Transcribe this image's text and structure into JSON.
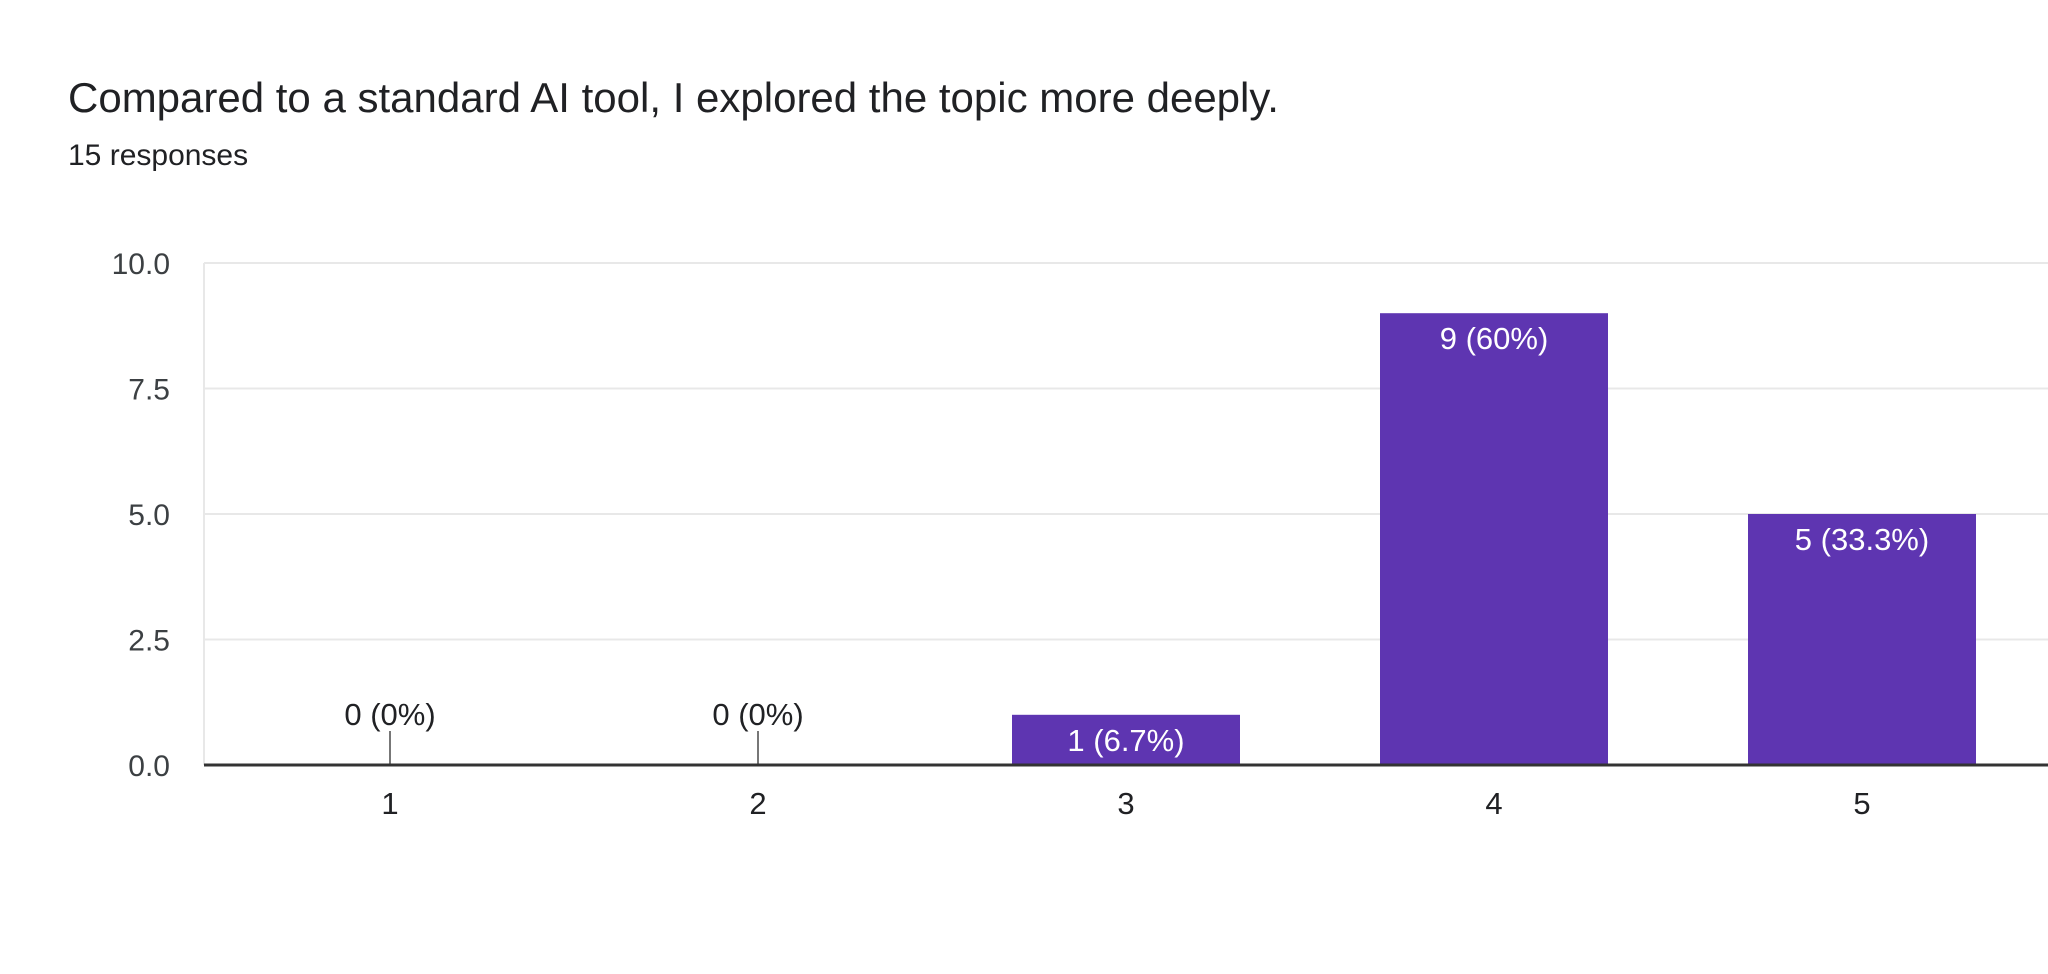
{
  "question": {
    "title": "Compared to a standard AI tool, I explored the topic more deeply.",
    "responses_label": "15 responses"
  },
  "colors": {
    "bar": "#5e35b1",
    "gridline": "#e8e8e8",
    "baseline": "#333333",
    "zero_stub": "#777777",
    "inner_label": "#ffffff",
    "outer_label": "#202124"
  },
  "chart_data": {
    "type": "bar",
    "title": "Compared to a standard AI tool, I explored the topic more deeply.",
    "categories": [
      "1",
      "2",
      "3",
      "4",
      "5"
    ],
    "values": [
      0,
      0,
      1,
      9,
      5
    ],
    "data_labels": [
      "0 (0%)",
      "0 (0%)",
      "1 (6.7%)",
      "9 (60%)",
      "5 (33.3%)"
    ],
    "ylim": [
      0,
      10
    ],
    "yticks": [
      0,
      2.5,
      5,
      7.5,
      10
    ],
    "ytick_labels": [
      "0.0",
      "2.5",
      "5.0",
      "7.5",
      "10.0"
    ],
    "xlabel": "",
    "ylabel": "",
    "grid": true,
    "legend": "none"
  }
}
